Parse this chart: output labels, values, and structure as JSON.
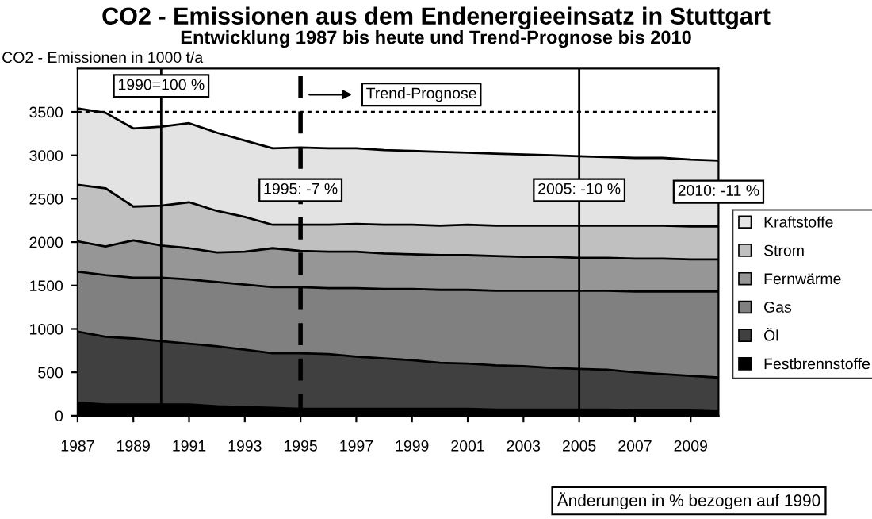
{
  "chart_data": {
    "type": "area",
    "stacked": true,
    "title": "CO2 - Emissionen aus dem Endenergieeinsatz in Stuttgart",
    "subtitle": "Entwicklung 1987 bis heute und Trend-Prognose bis 2010",
    "ylabel": "CO2 - Emissionen in 1000 t/a",
    "x": [
      1987,
      1988,
      1989,
      1990,
      1991,
      1992,
      1993,
      1994,
      1995,
      1996,
      1997,
      1998,
      1999,
      2000,
      2001,
      2002,
      2003,
      2004,
      2005,
      2006,
      2007,
      2008,
      2009,
      2010
    ],
    "series": [
      {
        "name": "Festbrennstoffe",
        "color": "#000000",
        "values": [
          150,
          130,
          130,
          130,
          130,
          110,
          100,
          90,
          80,
          80,
          80,
          80,
          80,
          80,
          80,
          70,
          70,
          70,
          70,
          70,
          60,
          60,
          60,
          50
        ]
      },
      {
        "name": "Öl",
        "color": "#404040",
        "values": [
          820,
          780,
          760,
          730,
          700,
          690,
          660,
          630,
          640,
          630,
          600,
          580,
          560,
          530,
          520,
          510,
          500,
          480,
          470,
          460,
          440,
          420,
          400,
          390
        ]
      },
      {
        "name": "Gas",
        "color": "#808080",
        "values": [
          690,
          710,
          700,
          730,
          740,
          740,
          750,
          760,
          760,
          760,
          790,
          800,
          820,
          840,
          850,
          860,
          870,
          890,
          900,
          910,
          930,
          950,
          970,
          990
        ]
      },
      {
        "name": "Fernwärme",
        "color": "#969696",
        "values": [
          350,
          330,
          430,
          370,
          360,
          340,
          380,
          450,
          420,
          420,
          420,
          410,
          400,
          400,
          400,
          400,
          390,
          390,
          380,
          380,
          380,
          380,
          370,
          370
        ]
      },
      {
        "name": "Strom",
        "color": "#c0c0c0",
        "values": [
          650,
          670,
          390,
          460,
          530,
          480,
          400,
          270,
          300,
          310,
          320,
          330,
          340,
          340,
          350,
          350,
          360,
          360,
          370,
          370,
          380,
          380,
          380,
          380
        ]
      },
      {
        "name": "Kraftstoffe",
        "color": "#e3e3e3",
        "values": [
          880,
          870,
          900,
          910,
          910,
          900,
          880,
          880,
          890,
          880,
          870,
          860,
          850,
          850,
          830,
          830,
          820,
          810,
          800,
          790,
          780,
          780,
          770,
          760
        ]
      }
    ],
    "xlim": [
      1987,
      2010
    ],
    "xticks": [
      1987,
      1989,
      1991,
      1993,
      1995,
      1997,
      1999,
      2001,
      2003,
      2005,
      2007,
      2009
    ],
    "ylim": [
      0,
      4000
    ],
    "yticks": [
      0,
      500,
      1000,
      1500,
      2000,
      2500,
      3000,
      3500
    ],
    "ref_lines": [
      {
        "axis": "x",
        "value": 1990,
        "color": "#000000",
        "line_style": "solid"
      },
      {
        "axis": "x",
        "value": 1995,
        "color": "#000000",
        "line_style": "dashed"
      },
      {
        "axis": "x",
        "value": 2005,
        "color": "#000000",
        "line_style": "solid"
      },
      {
        "axis": "y",
        "value": 3500,
        "color": "#000000",
        "line_style": "dotted"
      }
    ],
    "annotations": [
      {
        "text": "1990=100 %",
        "x": 1990,
        "y": 3800
      },
      "Trend-Prognose",
      {
        "text": "1995: -7 %",
        "x": 1995,
        "y": 2600
      },
      {
        "text": "2005: -10 %",
        "x": 2005,
        "y": 2600
      },
      {
        "text": "2010: -11 %",
        "x": 2010,
        "y": 2580
      },
      "Änderungen in % bezogen auf 1990"
    ],
    "legend": "right",
    "grid": false
  }
}
